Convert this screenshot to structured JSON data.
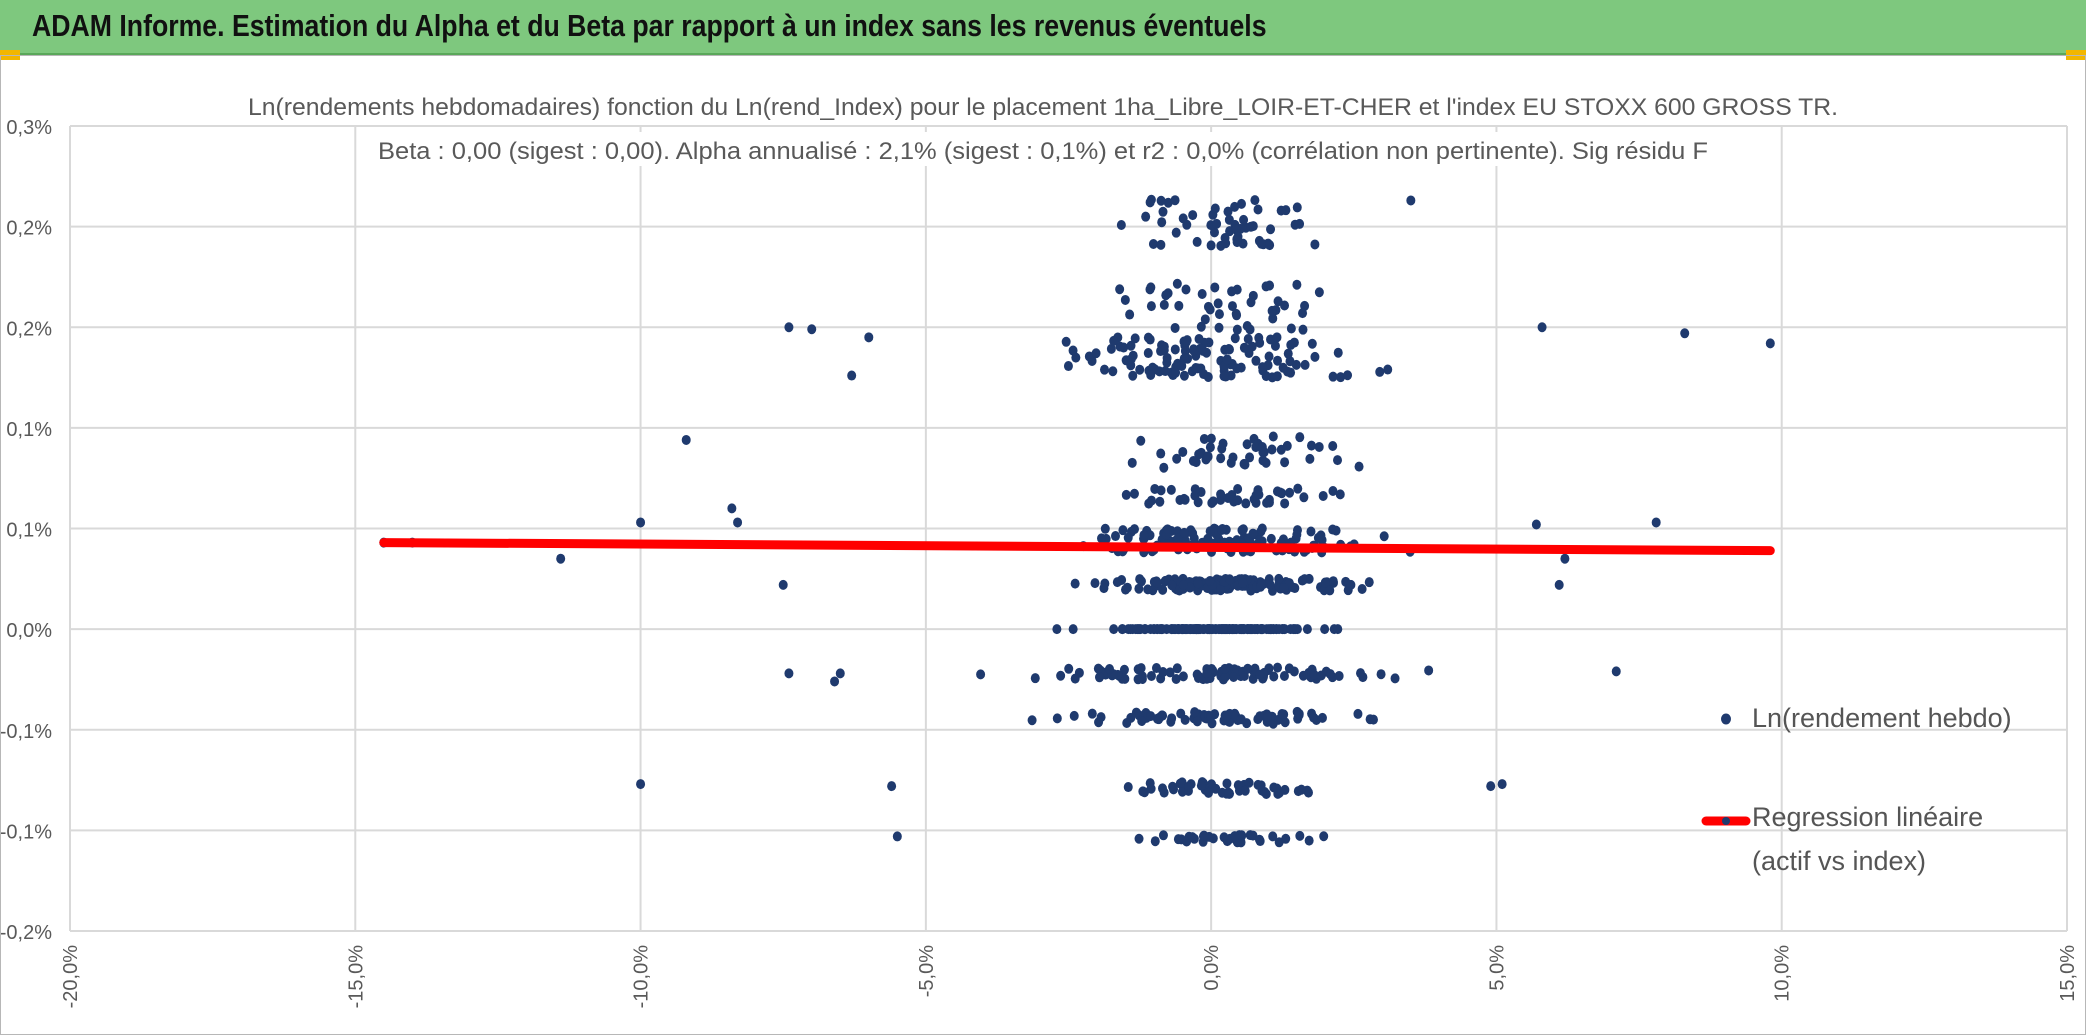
{
  "banner": {
    "title": "ADAM Informe. Estimation du Alpha et du Beta par rapport à un index sans les revenus éventuels"
  },
  "colors": {
    "banner": "#7ec87e",
    "points": "#1f3a6e",
    "regression": "#ff0000",
    "grid": "#d9d9d9",
    "text": "#595959"
  },
  "chart_data": {
    "type": "scatter",
    "title": "Ln(rendements hebdomadaires) fonction du Ln(rend_Index) pour le placement 1ha_Libre_LOIR-ET-CHER et l'index EU STOXX 600 GROSS TR.",
    "subtitle": "Beta : 0,00 (sigest : 0,00). Alpha annualisé : 2,1% (sigest : 0,1%) et r2 : 0,0% (corrélation non pertinente). Sig résidu F",
    "xlabel": "",
    "ylabel": "",
    "xlim": [
      -20,
      15
    ],
    "ylim": [
      -0.15,
      0.25
    ],
    "x_ticks": [
      -20,
      -15,
      -10,
      -5,
      0,
      5,
      10,
      15
    ],
    "x_tick_labels": [
      "-20,0%",
      "-15,0%",
      "-10,0%",
      "-5,0%",
      "0,0%",
      "5,0%",
      "10,0%",
      "15,0%"
    ],
    "y_ticks": [
      0.25,
      0.2,
      0.15,
      0.1,
      0.05,
      0.0,
      -0.05,
      -0.1,
      -0.15
    ],
    "y_tick_labels": [
      "0,3%",
      "0,2%",
      "0,2%",
      "0,1%",
      "0,1%",
      "0,0%",
      "-0,1%",
      "-0,1%",
      "-0,2%"
    ],
    "grid": true,
    "legend": [
      "Ln(rendement hebdo)",
      "Regression linéaire",
      "(actif vs index)"
    ],
    "legend_position": "right",
    "regression": {
      "x": [
        -14.5,
        9.8
      ],
      "y": [
        0.043,
        0.039
      ]
    },
    "outliers": [
      {
        "x": -14.5,
        "y": 0.043
      },
      {
        "x": -14.0,
        "y": 0.043
      },
      {
        "x": -11.4,
        "y": 0.035
      },
      {
        "x": -10.0,
        "y": 0.053
      },
      {
        "x": -9.2,
        "y": 0.094
      },
      {
        "x": -8.4,
        "y": 0.06
      },
      {
        "x": -8.3,
        "y": 0.053
      },
      {
        "x": -7.5,
        "y": 0.022
      },
      {
        "x": -7.4,
        "y": 0.15
      },
      {
        "x": -7.4,
        "y": -0.022
      },
      {
        "x": -7.0,
        "y": 0.149
      },
      {
        "x": -6.6,
        "y": -0.026
      },
      {
        "x": -6.5,
        "y": -0.022
      },
      {
        "x": -6.3,
        "y": 0.126
      },
      {
        "x": -6.0,
        "y": 0.145
      },
      {
        "x": -5.6,
        "y": -0.078
      },
      {
        "x": -5.5,
        "y": -0.103
      },
      {
        "x": -10.0,
        "y": -0.077
      },
      {
        "x": 5.8,
        "y": 0.15
      },
      {
        "x": 7.1,
        "y": -0.021
      },
      {
        "x": 7.8,
        "y": 0.053
      },
      {
        "x": 8.3,
        "y": 0.147
      },
      {
        "x": 9.8,
        "y": 0.142
      },
      {
        "x": 4.9,
        "y": -0.078
      },
      {
        "x": 5.1,
        "y": -0.077
      },
      {
        "x": 6.2,
        "y": 0.035
      },
      {
        "x": 6.1,
        "y": 0.022
      },
      {
        "x": 5.7,
        "y": 0.052
      },
      {
        "x": 3.5,
        "y": 0.213
      }
    ],
    "clusters": [
      {
        "y": 0.0,
        "x_min": -3.2,
        "x_max": 3.0,
        "count": 140,
        "spread": 0.0
      },
      {
        "y": -0.022,
        "x_min": -4.4,
        "x_max": 4.8,
        "count": 95,
        "spread": 0.003
      },
      {
        "y": -0.044,
        "x_min": -3.8,
        "x_max": 4.2,
        "count": 75,
        "spread": 0.003
      },
      {
        "y": -0.079,
        "x_min": -2.6,
        "x_max": 3.0,
        "count": 48,
        "spread": 0.003
      },
      {
        "y": -0.104,
        "x_min": -2.3,
        "x_max": 2.8,
        "count": 34,
        "spread": 0.002
      },
      {
        "y": 0.022,
        "x_min": -3.3,
        "x_max": 3.5,
        "count": 140,
        "spread": 0.003
      },
      {
        "y": 0.044,
        "x_min": -3.5,
        "x_max": 4.0,
        "count": 140,
        "spread": 0.006
      },
      {
        "y": 0.066,
        "x_min": -2.5,
        "x_max": 3.0,
        "count": 45,
        "spread": 0.004
      },
      {
        "y": 0.088,
        "x_min": -2.8,
        "x_max": 3.8,
        "count": 45,
        "spread": 0.008
      },
      {
        "y": 0.135,
        "x_min": -3.2,
        "x_max": 3.3,
        "count": 120,
        "spread": 0.01
      },
      {
        "y": 0.16,
        "x_min": -2.8,
        "x_max": 3.2,
        "count": 45,
        "spread": 0.012
      },
      {
        "y": 0.202,
        "x_min": -2.5,
        "x_max": 2.6,
        "count": 55,
        "spread": 0.012
      }
    ]
  }
}
